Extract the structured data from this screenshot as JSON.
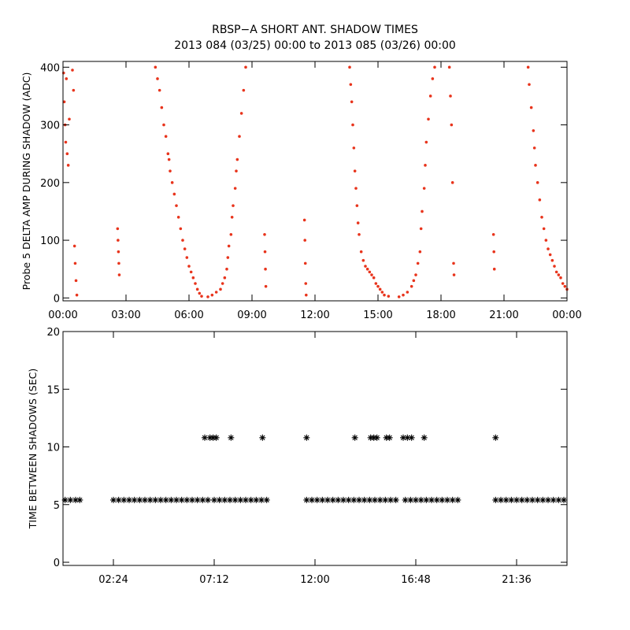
{
  "chart_data": [
    {
      "type": "scatter",
      "marker": "dot",
      "title": "RBSP−A SHORT ANT. SHADOW TIMES",
      "subtitle": "2013 084 (03/25) 00:00 to 2013 085 (03/26) 00:00",
      "ylabel": "Probe 5 DELTA AMP DURING SHADOW (ADC)",
      "xlim": [
        0,
        24
      ],
      "xticks": [
        {
          "value": 0,
          "label": "00:00"
        },
        {
          "value": 3,
          "label": "03:00"
        },
        {
          "value": 6,
          "label": "06:00"
        },
        {
          "value": 9,
          "label": "09:00"
        },
        {
          "value": 12,
          "label": "12:00"
        },
        {
          "value": 15,
          "label": "15:00"
        },
        {
          "value": 18,
          "label": "18:00"
        },
        {
          "value": 21,
          "label": "21:00"
        },
        {
          "value": 24,
          "label": "00:00"
        }
      ],
      "ylim": [
        -5,
        410
      ],
      "yticks": [
        0,
        100,
        200,
        300,
        400
      ],
      "series": [
        {
          "color": "#e8341c",
          "x": [
            0.03,
            0.06,
            0.1,
            0.13,
            0.16,
            0.2,
            0.25,
            0.3,
            0.45,
            0.5,
            0.55,
            0.58,
            0.62,
            0.66,
            2.6,
            2.62,
            2.64,
            2.66,
            2.68,
            4.4,
            4.5,
            4.6,
            4.7,
            4.8,
            4.9,
            5.0,
            5.05,
            5.1,
            5.2,
            5.3,
            5.4,
            5.5,
            5.6,
            5.7,
            5.8,
            5.9,
            6.0,
            6.1,
            6.2,
            6.3,
            6.4,
            6.5,
            6.6,
            6.9,
            7.1,
            7.3,
            7.5,
            7.6,
            7.7,
            7.8,
            7.85,
            7.9,
            8.0,
            8.05,
            8.1,
            8.2,
            8.25,
            8.3,
            8.4,
            8.5,
            8.6,
            8.7,
            9.6,
            9.62,
            9.64,
            9.66,
            11.5,
            11.52,
            11.54,
            11.56,
            11.58,
            13.65,
            13.7,
            13.75,
            13.8,
            13.85,
            13.9,
            13.95,
            14.0,
            14.05,
            14.1,
            14.2,
            14.3,
            14.4,
            14.5,
            14.6,
            14.7,
            14.8,
            14.9,
            15.0,
            15.1,
            15.2,
            15.3,
            15.5,
            16.0,
            16.2,
            16.4,
            16.6,
            16.7,
            16.8,
            16.9,
            17.0,
            17.05,
            17.1,
            17.2,
            17.25,
            17.3,
            17.4,
            17.5,
            17.6,
            17.7,
            18.4,
            18.45,
            18.5,
            18.55,
            18.6,
            18.62,
            20.5,
            20.52,
            20.54,
            22.15,
            22.2,
            22.3,
            22.4,
            22.45,
            22.5,
            22.6,
            22.7,
            22.8,
            22.9,
            23.0,
            23.1,
            23.2,
            23.3,
            23.4,
            23.5,
            23.6,
            23.7,
            23.8,
            23.9,
            24.0
          ],
          "values": [
            390,
            340,
            300,
            270,
            380,
            250,
            230,
            310,
            395,
            360,
            90,
            60,
            30,
            5,
            120,
            100,
            80,
            60,
            40,
            400,
            380,
            360,
            330,
            300,
            280,
            250,
            240,
            220,
            200,
            180,
            160,
            140,
            120,
            100,
            85,
            70,
            55,
            45,
            35,
            25,
            15,
            8,
            3,
            2,
            5,
            10,
            15,
            25,
            35,
            50,
            70,
            90,
            110,
            140,
            160,
            190,
            220,
            240,
            280,
            320,
            360,
            400,
            110,
            80,
            50,
            20,
            135,
            100,
            60,
            25,
            5,
            400,
            370,
            340,
            300,
            260,
            220,
            190,
            160,
            130,
            110,
            80,
            65,
            55,
            50,
            45,
            40,
            35,
            25,
            20,
            15,
            10,
            5,
            3,
            2,
            5,
            10,
            20,
            30,
            40,
            60,
            80,
            120,
            150,
            190,
            230,
            270,
            310,
            350,
            380,
            400,
            400,
            350,
            300,
            200,
            60,
            40,
            110,
            80,
            50,
            400,
            370,
            330,
            290,
            260,
            230,
            200,
            170,
            140,
            120,
            100,
            85,
            75,
            65,
            55,
            45,
            40,
            35,
            25,
            20,
            15
          ]
        }
      ]
    },
    {
      "type": "scatter",
      "marker": "asterisk",
      "ylabel": "TIME BETWEEN SHADOWS (SEC)",
      "xlim": [
        0,
        24
      ],
      "xticks": [
        {
          "value": 2.4,
          "label": "02:24"
        },
        {
          "value": 7.2,
          "label": "07:12"
        },
        {
          "value": 12,
          "label": "12:00"
        },
        {
          "value": 16.8,
          "label": "16:48"
        },
        {
          "value": 21.6,
          "label": "21:36"
        }
      ],
      "ylim": [
        0,
        20
      ],
      "yticks": [
        0,
        5,
        10,
        15,
        20
      ],
      "series": [
        {
          "color": "#000000",
          "x": [
            0.1,
            0.35,
            0.6,
            0.8,
            2.4,
            2.65,
            2.9,
            3.15,
            3.4,
            3.65,
            3.9,
            4.15,
            4.4,
            4.65,
            4.9,
            5.15,
            5.4,
            5.65,
            5.9,
            6.15,
            6.4,
            6.65,
            6.9,
            7.2,
            7.45,
            7.7,
            7.95,
            8.2,
            8.45,
            8.7,
            8.95,
            9.2,
            9.45,
            9.7,
            11.6,
            11.85,
            12.1,
            12.35,
            12.6,
            12.85,
            13.1,
            13.35,
            13.6,
            13.85,
            14.1,
            14.35,
            14.6,
            14.85,
            15.1,
            15.35,
            15.6,
            15.85,
            16.3,
            16.55,
            16.8,
            17.05,
            17.3,
            17.55,
            17.8,
            18.05,
            18.3,
            18.55,
            18.8,
            20.6,
            20.85,
            21.1,
            21.35,
            21.6,
            21.85,
            22.1,
            22.35,
            22.6,
            22.85,
            23.1,
            23.35,
            23.6,
            23.85
          ],
          "values": [
            5.4,
            5.4,
            5.4,
            5.4,
            5.4,
            5.4,
            5.4,
            5.4,
            5.4,
            5.4,
            5.4,
            5.4,
            5.4,
            5.4,
            5.4,
            5.4,
            5.4,
            5.4,
            5.4,
            5.4,
            5.4,
            5.4,
            5.4,
            5.4,
            5.4,
            5.4,
            5.4,
            5.4,
            5.4,
            5.4,
            5.4,
            5.4,
            5.4,
            5.4,
            5.4,
            5.4,
            5.4,
            5.4,
            5.4,
            5.4,
            5.4,
            5.4,
            5.4,
            5.4,
            5.4,
            5.4,
            5.4,
            5.4,
            5.4,
            5.4,
            5.4,
            5.4,
            5.4,
            5.4,
            5.4,
            5.4,
            5.4,
            5.4,
            5.4,
            5.4,
            5.4,
            5.4,
            5.4,
            5.4,
            5.4,
            5.4,
            5.4,
            5.4,
            5.4,
            5.4,
            5.4,
            5.4,
            5.4,
            5.4,
            5.4,
            5.4,
            5.4
          ]
        },
        {
          "color": "#000000",
          "x": [
            6.75,
            7.0,
            7.15,
            7.3,
            8.0,
            9.5,
            11.6,
            13.9,
            14.65,
            14.8,
            14.95,
            15.4,
            15.55,
            16.2,
            16.4,
            16.6,
            17.2,
            20.6
          ],
          "values": [
            10.8,
            10.8,
            10.8,
            10.8,
            10.8,
            10.8,
            10.8,
            10.8,
            10.8,
            10.8,
            10.8,
            10.8,
            10.8,
            10.8,
            10.8,
            10.8,
            10.8,
            10.8
          ]
        }
      ]
    }
  ]
}
